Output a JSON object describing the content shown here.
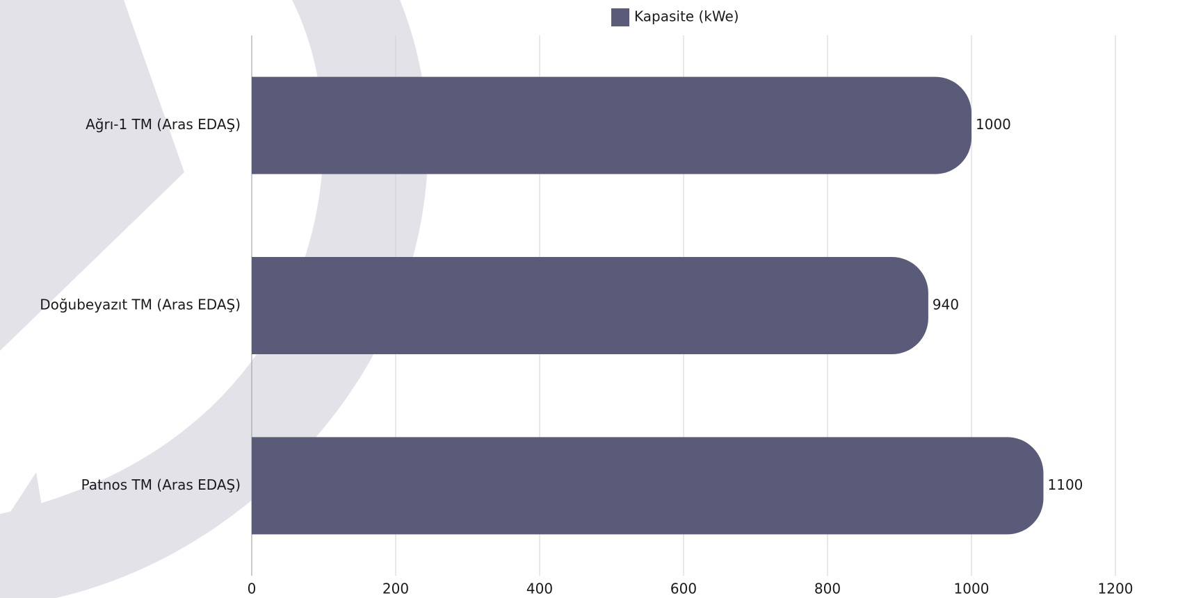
{
  "chart_data": {
    "type": "bar",
    "orientation": "horizontal",
    "categories": [
      "Ağrı-1 TM (Aras EDAŞ)",
      "Doğubeyazıt TM (Aras EDAŞ)",
      "Patnos TM (Aras EDAŞ)"
    ],
    "series": [
      {
        "name": "Kapasite (kWe)",
        "color": "#5a5b78",
        "values": [
          1000,
          940,
          1100
        ]
      }
    ],
    "xlim": [
      0,
      1200
    ],
    "xticks": [
      0,
      200,
      400,
      600,
      800,
      1000,
      1200
    ],
    "grid": true,
    "legend": "top"
  }
}
